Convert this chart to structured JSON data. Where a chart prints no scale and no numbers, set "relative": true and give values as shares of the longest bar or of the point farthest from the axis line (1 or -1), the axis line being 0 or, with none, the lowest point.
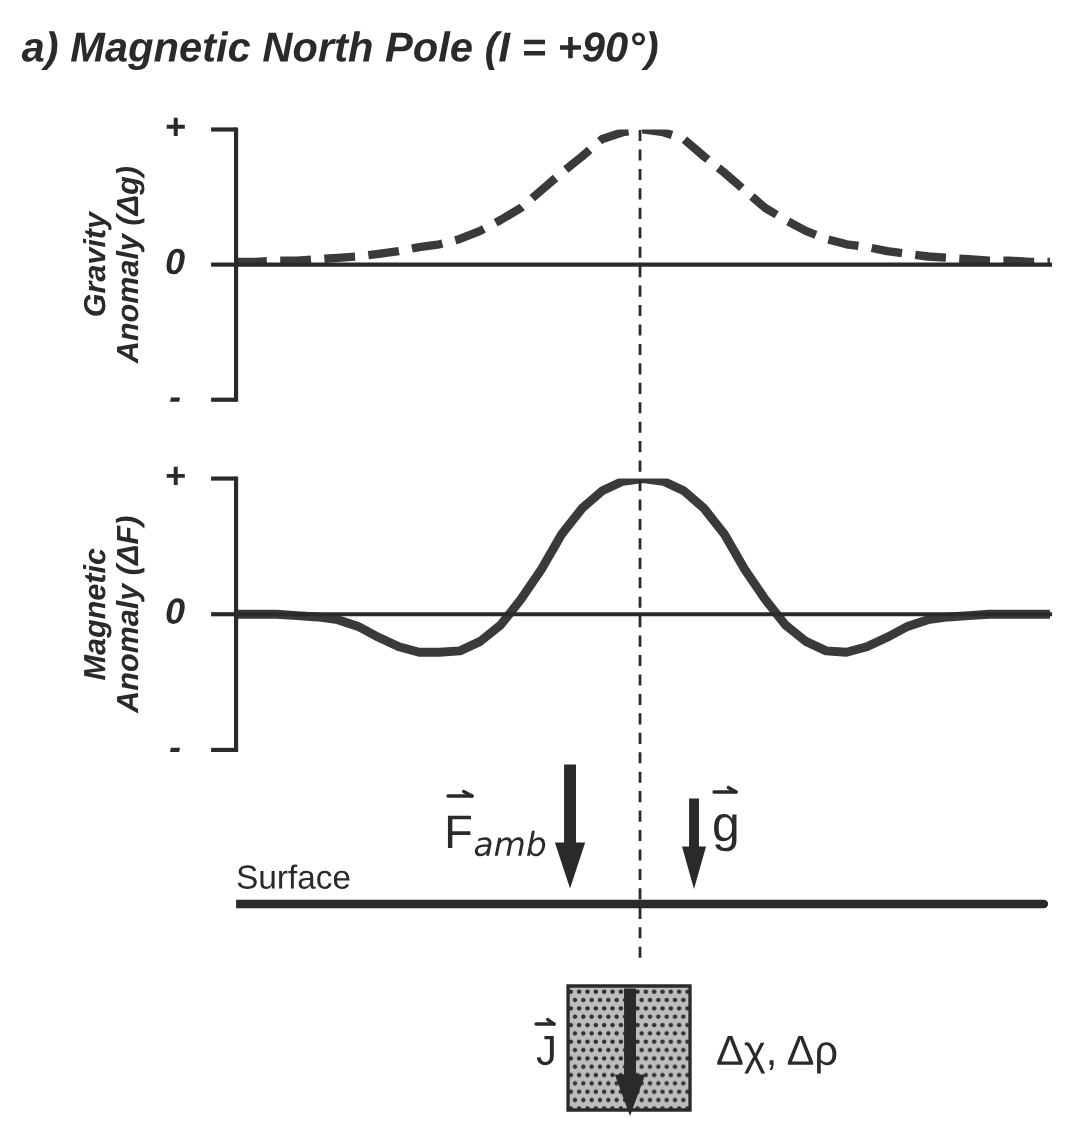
{
  "chart_data": [
    {
      "type": "line",
      "title": "a) Magnetic North Pole (I = +90°)",
      "ylabel": "Gravity\nAnomaly (Δg)",
      "line_style": "dashed",
      "relative": true,
      "tick_labels": false,
      "annotations": [
        "+",
        "0",
        "-"
      ],
      "categories": [
        null,
        null,
        null,
        null,
        null,
        null,
        null,
        null,
        null,
        null,
        null,
        null,
        null,
        null,
        null,
        null,
        null,
        null,
        null,
        null,
        null,
        null,
        null,
        null,
        null,
        null,
        null,
        null,
        null,
        null,
        null,
        null,
        null,
        null,
        null,
        null,
        null,
        null,
        null,
        null,
        null
      ],
      "series": [
        {
          "color": "#3a3a3a",
          "values": [
            0.02,
            0.02,
            0.03,
            0.03,
            0.04,
            0.05,
            0.06,
            0.08,
            0.1,
            0.13,
            0.15,
            0.19,
            0.25,
            0.33,
            0.42,
            0.55,
            0.68,
            0.8,
            0.93,
            0.98,
            1.0,
            0.98,
            0.93,
            0.8,
            0.68,
            0.55,
            0.42,
            0.33,
            0.25,
            0.19,
            0.15,
            0.13,
            0.1,
            0.08,
            0.06,
            0.05,
            0.04,
            0.03,
            0.03,
            0.02,
            0.02
          ]
        }
      ]
    },
    {
      "type": "line",
      "ylabel": "Magnetic\nAnomaly (ΔF)",
      "line_style": "solid",
      "relative": true,
      "tick_labels": false,
      "annotations": [
        "+",
        "0",
        "-"
      ],
      "categories": [
        null,
        null,
        null,
        null,
        null,
        null,
        null,
        null,
        null,
        null,
        null,
        null,
        null,
        null,
        null,
        null,
        null,
        null,
        null,
        null,
        null,
        null,
        null,
        null,
        null,
        null,
        null,
        null,
        null,
        null,
        null,
        null,
        null,
        null,
        null,
        null,
        null,
        null,
        null,
        null,
        null
      ],
      "series": [
        {
          "color": "#3a3a3a",
          "values": [
            0,
            0,
            0,
            -0.01,
            -0.02,
            -0.04,
            -0.09,
            -0.17,
            -0.24,
            -0.28,
            -0.28,
            -0.27,
            -0.2,
            -0.08,
            0.11,
            0.33,
            0.59,
            0.78,
            0.91,
            0.98,
            1.0,
            0.98,
            0.91,
            0.78,
            0.59,
            0.33,
            0.11,
            -0.08,
            -0.2,
            -0.27,
            -0.28,
            -0.24,
            -0.17,
            -0.09,
            -0.04,
            -0.02,
            -0.01,
            0,
            0,
            0,
            0
          ]
        }
      ]
    },
    {
      "type": "other",
      "annotations": [
        "Surface",
        "F$_{amb}$",
        "g",
        "J",
        "Δχ, Δρ"
      ]
    }
  ]
}
